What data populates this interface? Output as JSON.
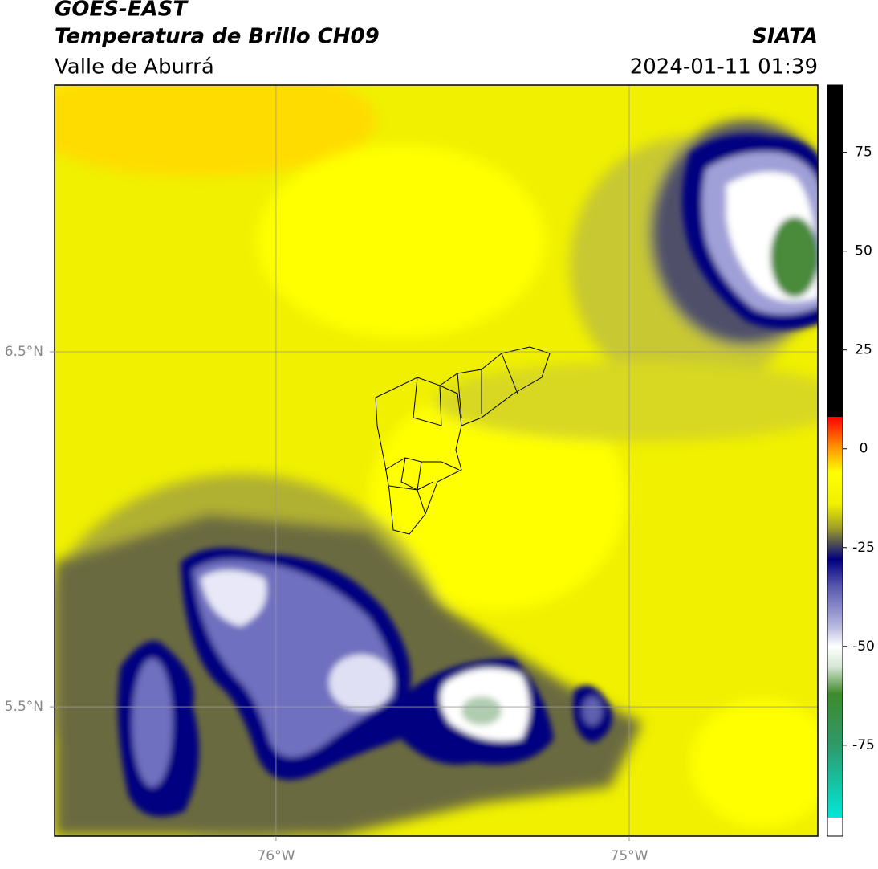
{
  "chart_data": {
    "type": "map",
    "title": "GOES-EAST",
    "subtitle": "Temperatura de Brillo CH09",
    "region": "Valle de Aburrá",
    "source": "SIATA",
    "timestamp": "2024-01-11 01:39",
    "xlim": [
      -76.627,
      -74.466
    ],
    "ylim": [
      5.136,
      7.251
    ],
    "xticks": [
      {
        "value": -76,
        "label": "76°W"
      },
      {
        "value": -75,
        "label": "75°W"
      }
    ],
    "yticks": [
      {
        "value": 6.5,
        "label": "6.5°N"
      },
      {
        "value": 5.5,
        "label": "5.5°N"
      }
    ],
    "grid": true,
    "colorbar_lim": [
      -98,
      92
    ],
    "colorbar_ticks": [
      75,
      50,
      25,
      0,
      -25,
      -50,
      -75
    ],
    "colormap": [
      {
        "value": -98,
        "color": "#ffffff"
      },
      {
        "value": -93.3,
        "color": "#ffffff"
      },
      {
        "value": -93.3,
        "color": "#00e8d8"
      },
      {
        "value": -75,
        "color": "#2e9a6a"
      },
      {
        "value": -62,
        "color": "#3f8a2c"
      },
      {
        "value": -55,
        "color": "#d8e8d8"
      },
      {
        "value": -50,
        "color": "#ffffff"
      },
      {
        "value": -45,
        "color": "#b8b8e0"
      },
      {
        "value": -35,
        "color": "#5a5ab0"
      },
      {
        "value": -28,
        "color": "#000080"
      },
      {
        "value": -25,
        "color": "#3a3a60"
      },
      {
        "value": -20,
        "color": "#a0a028"
      },
      {
        "value": -14,
        "color": "#f0f000"
      },
      {
        "value": -6,
        "color": "#ffff00"
      },
      {
        "value": 0,
        "color": "#ff9a00"
      },
      {
        "value": 8.1,
        "color": "#ff0000"
      },
      {
        "value": 8.1,
        "color": "#000000"
      },
      {
        "value": 92,
        "color": "#000000"
      }
    ]
  }
}
